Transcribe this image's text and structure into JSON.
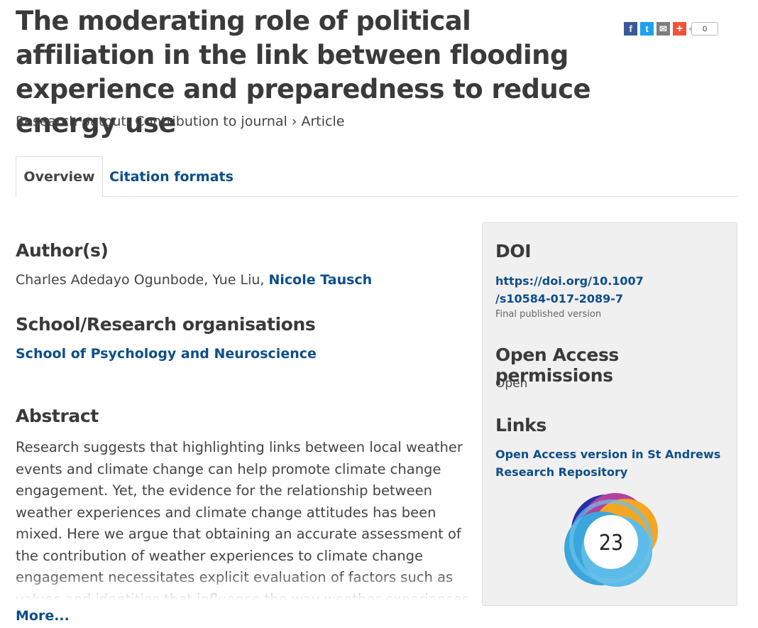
{
  "title": "The moderating role of political affiliation in the link between flooding experience and preparedness to reduce energy use",
  "subtitle": "Research output: Contribution to journal › Article",
  "share": {
    "facebook_icon": "f",
    "twitter_icon": "t",
    "email_icon": "✉",
    "plus_icon": "+",
    "count": "0"
  },
  "tabs": [
    {
      "label": "Overview"
    },
    {
      "label": "Citation formats"
    }
  ],
  "authors": {
    "heading": "Author(s)",
    "plain": "Charles Adedayo Ogunbode, Yue Liu, ",
    "link": "Nicole Tausch"
  },
  "organisations": {
    "heading": "School/Research organisations",
    "link": "School of Psychology and Neuroscience"
  },
  "abstract": {
    "heading": "Abstract",
    "text": "Research suggests that highlighting links between local weather events and climate change can help promote climate change engagement. Yet, the evidence for the relationship between weather experiences and climate change attitudes has been mixed. Here we argue that obtaining an accurate assessment of the contribution of weather experiences to climate change engagement necessitates explicit evaluation of factors such as values and identities that influence the way weather experiences are interpreted and",
    "more_label": "More..."
  },
  "sidebar": {
    "doi_heading": "DOI",
    "doi_line1": "https://doi.org/10.1007",
    "doi_line2": "/s10584-017-2089-7",
    "doi_note": "Final published version",
    "oa_heading": "Open Access permissions",
    "oa_value": "Open",
    "links_heading": "Links",
    "link_line1": "Open Access version in St Andrews",
    "link_line2": "Research Repository",
    "altmetric_score": "23"
  },
  "colors": {
    "link": "#0d4e8a",
    "heading": "#3a3a3a",
    "sidebar_bg": "#f0f0f0"
  }
}
